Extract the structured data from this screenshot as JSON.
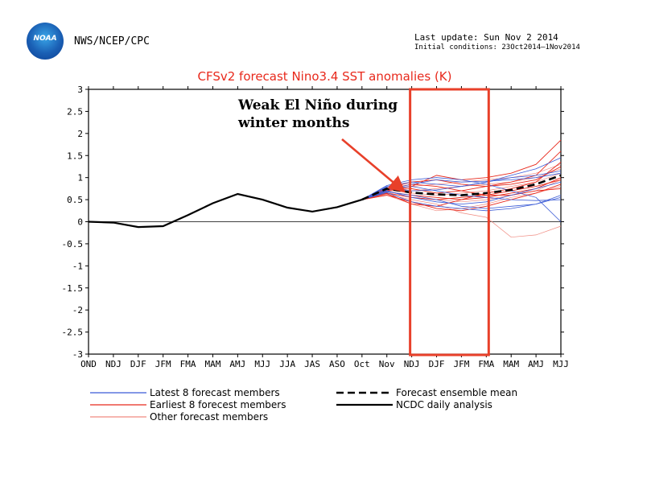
{
  "header": {
    "org": "NWS/NCEP/CPC",
    "logo_text": "NOAA",
    "last_update": "Last update: Sun Nov 2 2014",
    "initial_conditions": "Initial conditions: 23Oct2014–1Nov2014"
  },
  "colors": {
    "latest": "#3b5bd6",
    "earliest": "#e8291c",
    "other": "#f08a80",
    "mean": "#000000",
    "highlight": "#e8402a"
  },
  "annotation": {
    "line1": "Weak El Niño during",
    "line2": "winter months"
  },
  "chart_data": {
    "type": "line",
    "title": "CFSv2 forecast Nino3.4 SST anomalies (K)",
    "xlabel": "",
    "ylabel": "",
    "ylim": [
      -3,
      3
    ],
    "yticks": [
      3,
      2.5,
      2,
      1.5,
      1,
      0.5,
      0,
      -0.5,
      -1,
      -1.5,
      -2,
      -2.5,
      -3
    ],
    "ytick_labels": [
      "3",
      "2.5",
      "2",
      "1.5",
      "1",
      "0.5",
      "0",
      "-0.5",
      "-1",
      "-1.5",
      "-2",
      "-2.5",
      "-3"
    ],
    "categories": [
      "OND",
      "NDJ",
      "DJF",
      "JFM",
      "FMA",
      "MAM",
      "AMJ",
      "MJJ",
      "JJA",
      "JAS",
      "ASO",
      "Oct",
      "Nov",
      "NDJ",
      "DJF",
      "JFM",
      "FMA",
      "MAM",
      "AMJ",
      "MJJ"
    ],
    "highlight_range": [
      "NDJ",
      "FMA"
    ],
    "series": [
      {
        "name": "NCDC daily analysis",
        "style": "solid-black",
        "values": [
          0.0,
          -0.02,
          -0.12,
          -0.1,
          0.15,
          0.42,
          0.63,
          0.5,
          0.32,
          0.23,
          0.33,
          0.5,
          null,
          null,
          null,
          null,
          null,
          null,
          null,
          null
        ]
      },
      {
        "name": "Forecast ensemble mean",
        "style": "dashed-black",
        "values": [
          null,
          null,
          null,
          null,
          null,
          null,
          null,
          null,
          null,
          null,
          null,
          0.5,
          0.75,
          0.66,
          0.62,
          0.6,
          0.65,
          0.72,
          0.85,
          1.05
        ]
      },
      {
        "name": "Latest 8 forecast members",
        "style": "latest",
        "members": [
          [
            0.5,
            0.82,
            0.95,
            1.0,
            0.95,
            0.85,
            0.7,
            0.55,
            0.0
          ],
          [
            0.5,
            0.72,
            0.85,
            0.95,
            0.9,
            0.92,
            0.95,
            1.0,
            1.1
          ],
          [
            0.5,
            0.68,
            0.6,
            0.5,
            0.35,
            0.3,
            0.35,
            0.4,
            0.55
          ],
          [
            0.5,
            0.78,
            0.7,
            0.72,
            0.8,
            0.9,
            1.0,
            1.05,
            1.15
          ],
          [
            0.5,
            0.7,
            0.55,
            0.45,
            0.4,
            0.45,
            0.6,
            0.75,
            0.9
          ],
          [
            0.5,
            0.74,
            0.8,
            0.7,
            0.6,
            0.55,
            0.5,
            0.48,
            0.5
          ],
          [
            0.5,
            0.66,
            0.45,
            0.35,
            0.3,
            0.25,
            0.3,
            0.4,
            0.6
          ],
          [
            0.5,
            0.8,
            0.9,
            0.85,
            0.8,
            0.9,
            1.05,
            1.2,
            1.45
          ]
        ]
      },
      {
        "name": "Earliest 8 forecest members",
        "style": "earliest",
        "members": [
          [
            0.5,
            0.7,
            0.8,
            1.05,
            0.95,
            1.0,
            1.1,
            1.3,
            1.85
          ],
          [
            0.5,
            0.65,
            0.55,
            0.5,
            0.55,
            0.6,
            0.7,
            0.8,
            0.95
          ],
          [
            0.5,
            0.72,
            0.75,
            0.65,
            0.7,
            0.8,
            0.9,
            1.05,
            1.6
          ],
          [
            0.5,
            0.6,
            0.45,
            0.3,
            0.25,
            0.35,
            0.5,
            0.65,
            0.85
          ],
          [
            0.5,
            0.76,
            0.9,
            0.95,
            0.85,
            0.8,
            0.85,
            0.95,
            1.25
          ],
          [
            0.5,
            0.68,
            0.6,
            0.55,
            0.5,
            0.55,
            0.65,
            0.75,
            1.0
          ],
          [
            0.5,
            0.64,
            0.4,
            0.35,
            0.5,
            0.65,
            0.75,
            0.9,
            1.35
          ],
          [
            0.5,
            0.74,
            0.85,
            0.8,
            0.7,
            0.6,
            0.6,
            0.7,
            0.75
          ]
        ]
      },
      {
        "name": "Other forecast members",
        "style": "other",
        "members": [
          [
            0.5,
            0.62,
            0.5,
            0.4,
            0.2,
            0.1,
            -0.35,
            -0.3,
            -0.1
          ],
          [
            0.5,
            0.7,
            0.7,
            0.75,
            0.8,
            0.85,
            0.9,
            1.0,
            1.2
          ],
          [
            0.5,
            0.66,
            0.55,
            0.5,
            0.45,
            0.5,
            0.6,
            0.7,
            0.95
          ],
          [
            0.5,
            0.75,
            0.8,
            0.85,
            0.9,
            0.95,
            1.0,
            1.1,
            1.3
          ],
          [
            0.5,
            0.6,
            0.4,
            0.25,
            0.3,
            0.4,
            0.55,
            0.65,
            0.8
          ],
          [
            0.5,
            0.72,
            0.65,
            0.6,
            0.65,
            0.7,
            0.8,
            0.9,
            1.1
          ]
        ]
      }
    ],
    "legend": [
      {
        "label": "Latest 8 forecast members",
        "style": "latest"
      },
      {
        "label": "Earliest 8 forecest members",
        "style": "earliest"
      },
      {
        "label": "Other forecast members",
        "style": "other"
      },
      {
        "label": "Forecast ensemble mean",
        "style": "dashed-black"
      },
      {
        "label": "NCDC daily analysis",
        "style": "solid-black"
      }
    ]
  }
}
